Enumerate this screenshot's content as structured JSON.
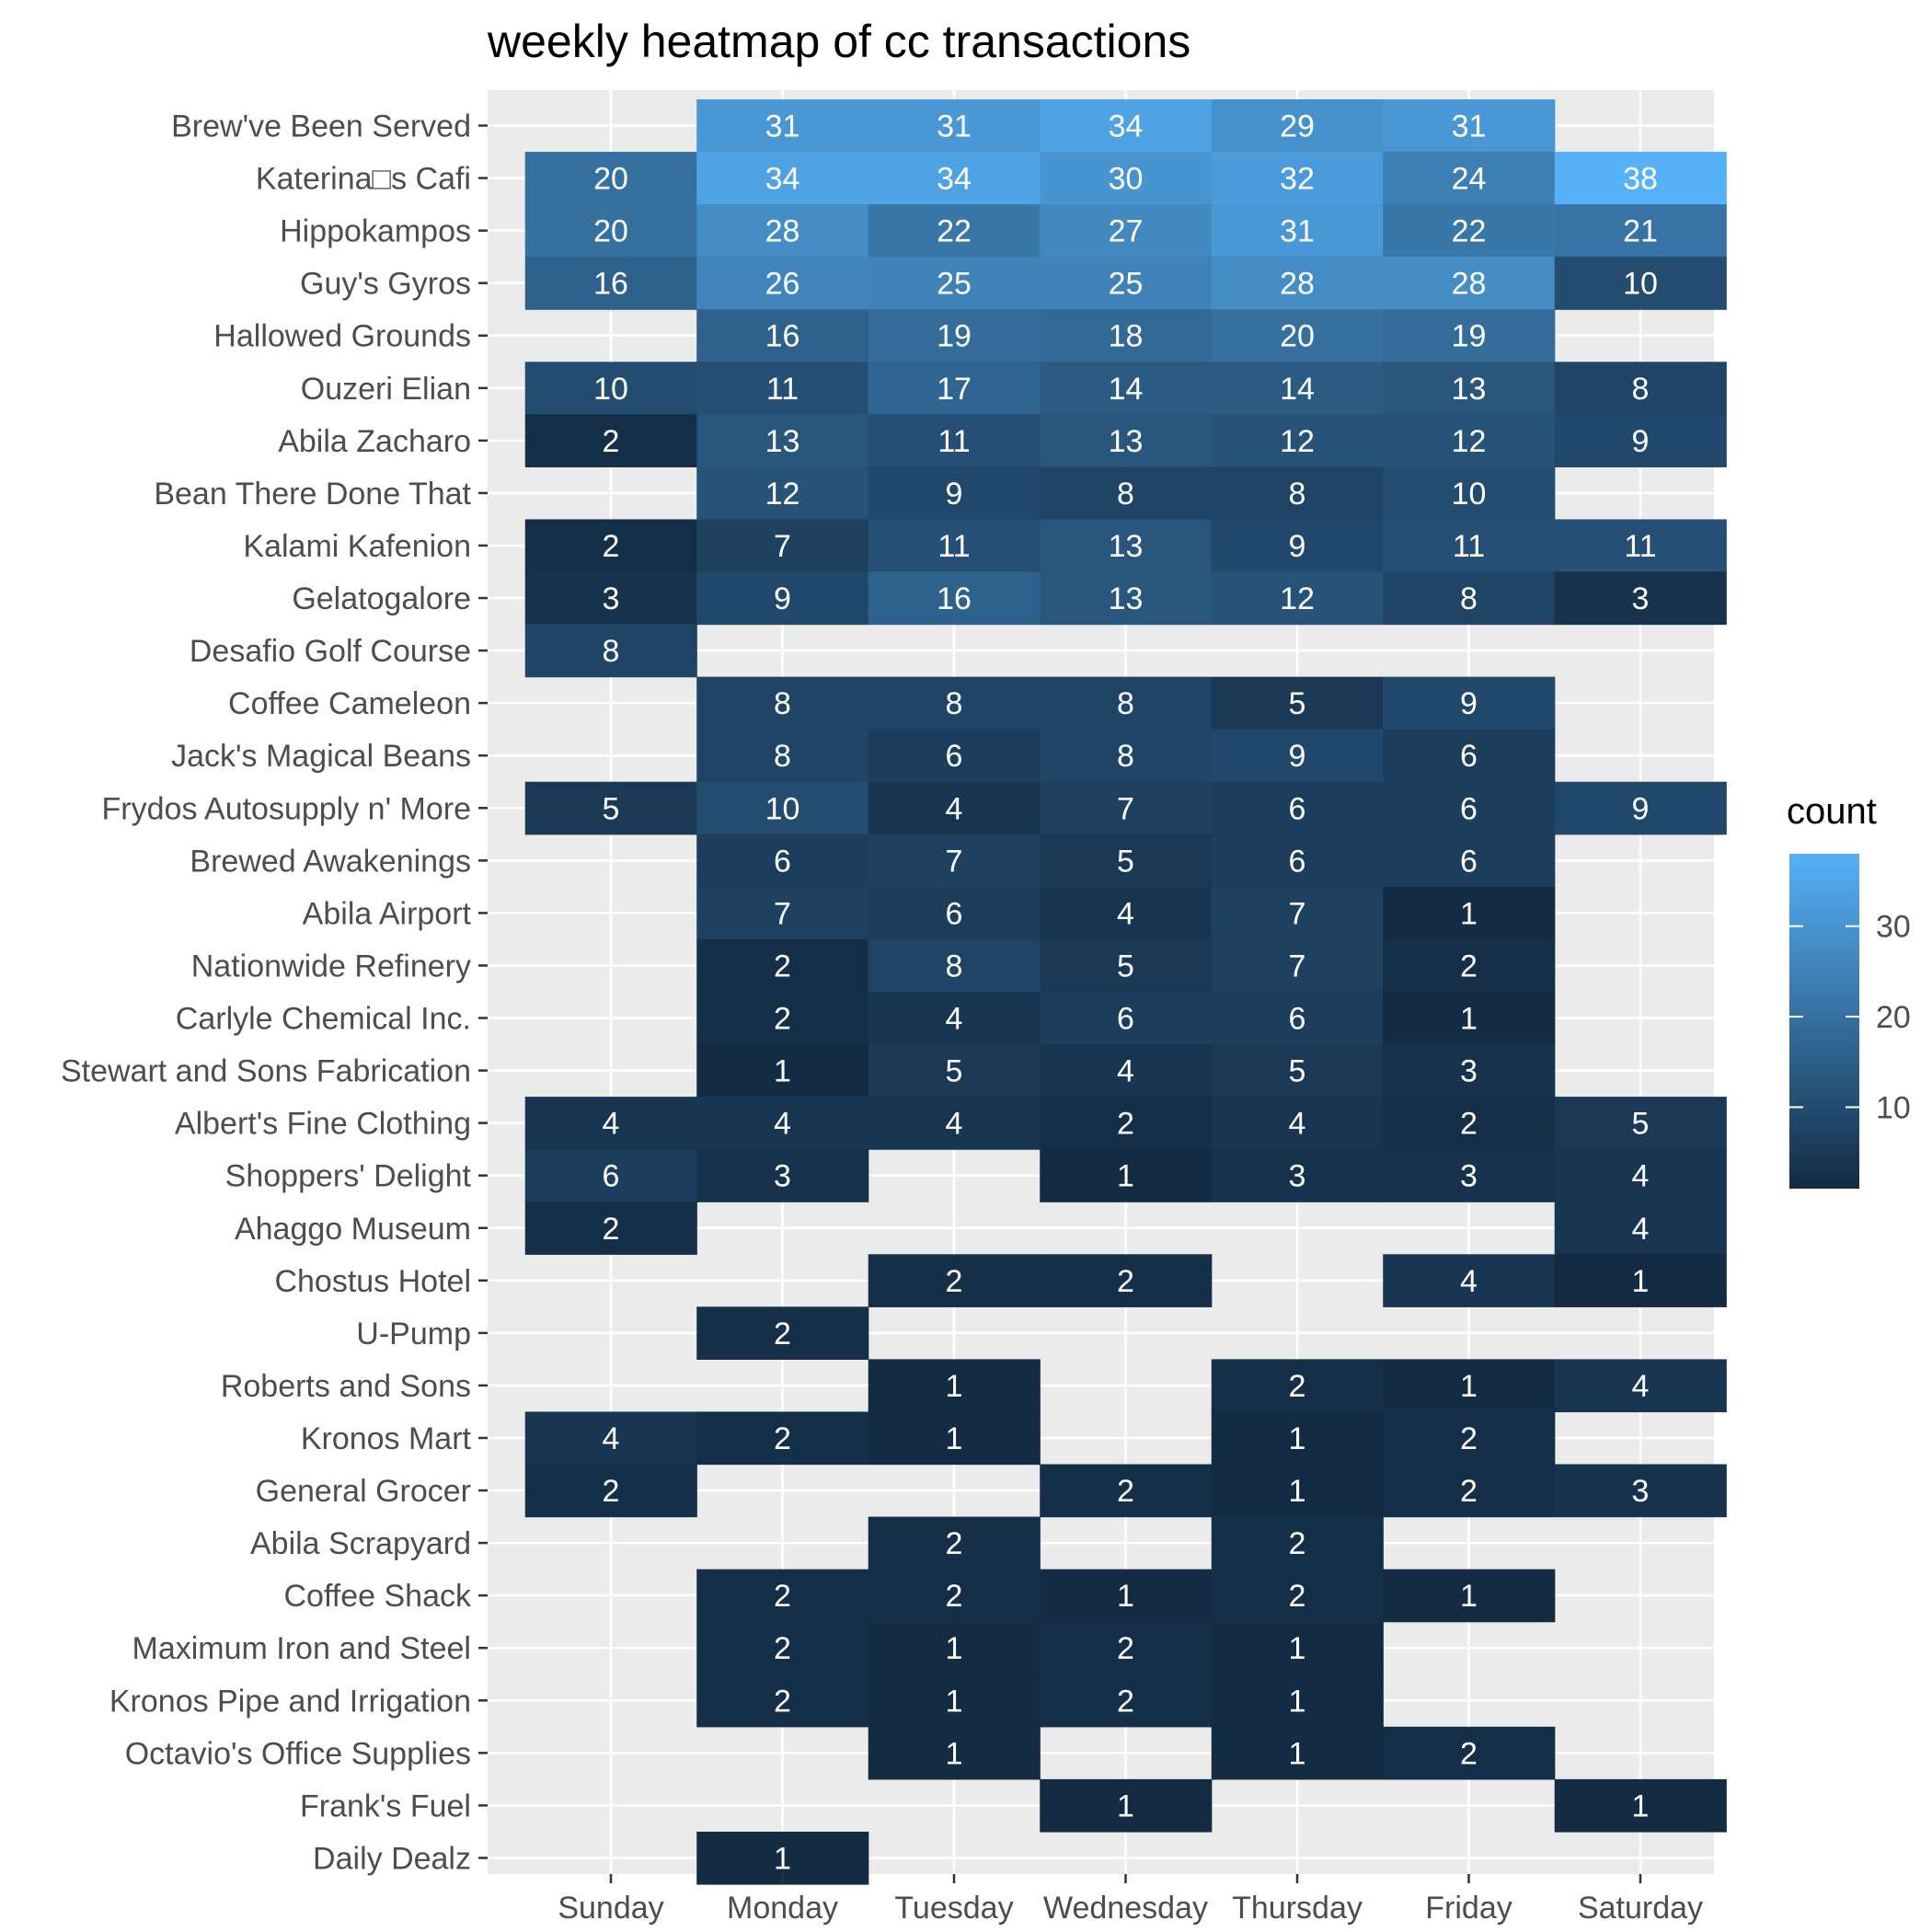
{
  "chart_data": {
    "type": "heatmap",
    "title": "weekly heatmap of cc transactions",
    "xlabel": "",
    "ylabel": "",
    "legend_title": "count",
    "legend_position": "right",
    "legend_ticks": [
      10,
      20,
      30
    ],
    "color_range": [
      1,
      38
    ],
    "color_low": "#132b43",
    "color_high": "#56b1f7",
    "panel_background": "#ebebeb",
    "grid": true,
    "days": [
      "Sunday",
      "Monday",
      "Tuesday",
      "Wednesday",
      "Thursday",
      "Friday",
      "Saturday"
    ],
    "locations": [
      "Brew've Been Served",
      "Katerina□s Cafi",
      "Hippokampos",
      "Guy's Gyros",
      "Hallowed Grounds",
      "Ouzeri Elian",
      "Abila Zacharo",
      "Bean There Done That",
      "Kalami Kafenion",
      "Gelatogalore",
      "Desafio Golf Course",
      "Coffee Cameleon",
      "Jack's Magical Beans",
      "Frydos Autosupply n' More",
      "Brewed Awakenings",
      "Abila Airport",
      "Nationwide Refinery",
      "Carlyle Chemical Inc.",
      "Stewart and Sons Fabrication",
      "Albert's Fine Clothing",
      "Shoppers' Delight",
      "Ahaggo Museum",
      "Chostus Hotel",
      "U-Pump",
      "Roberts and Sons",
      "Kronos Mart",
      "General Grocer",
      "Abila Scrapyard",
      "Coffee Shack",
      "Maximum Iron and Steel",
      "Kronos Pipe and Irrigation",
      "Octavio's Office Supplies",
      "Frank's Fuel",
      "Daily Dealz"
    ],
    "values": [
      [
        null,
        31,
        31,
        34,
        29,
        31,
        null
      ],
      [
        20,
        34,
        34,
        30,
        32,
        24,
        38
      ],
      [
        20,
        28,
        22,
        27,
        31,
        22,
        21
      ],
      [
        16,
        26,
        25,
        25,
        28,
        28,
        10
      ],
      [
        null,
        16,
        19,
        18,
        20,
        19,
        null
      ],
      [
        10,
        11,
        17,
        14,
        14,
        13,
        8
      ],
      [
        2,
        13,
        11,
        13,
        12,
        12,
        9
      ],
      [
        null,
        12,
        9,
        8,
        8,
        10,
        null
      ],
      [
        2,
        7,
        11,
        13,
        9,
        11,
        11
      ],
      [
        3,
        9,
        16,
        13,
        12,
        8,
        3
      ],
      [
        8,
        null,
        null,
        null,
        null,
        null,
        null
      ],
      [
        null,
        8,
        8,
        8,
        5,
        9,
        null
      ],
      [
        null,
        8,
        6,
        8,
        9,
        6,
        null
      ],
      [
        5,
        10,
        4,
        7,
        6,
        6,
        9
      ],
      [
        null,
        6,
        7,
        5,
        6,
        6,
        null
      ],
      [
        null,
        7,
        6,
        4,
        7,
        1,
        null
      ],
      [
        null,
        2,
        8,
        5,
        7,
        2,
        null
      ],
      [
        null,
        2,
        4,
        6,
        6,
        1,
        null
      ],
      [
        null,
        1,
        5,
        4,
        5,
        3,
        null
      ],
      [
        4,
        4,
        4,
        2,
        4,
        2,
        5
      ],
      [
        6,
        3,
        null,
        1,
        3,
        3,
        4
      ],
      [
        2,
        null,
        null,
        null,
        null,
        null,
        4
      ],
      [
        null,
        null,
        2,
        2,
        null,
        4,
        1
      ],
      [
        null,
        2,
        null,
        null,
        null,
        null,
        null
      ],
      [
        null,
        null,
        1,
        null,
        2,
        1,
        4
      ],
      [
        4,
        2,
        1,
        null,
        1,
        2,
        null
      ],
      [
        2,
        null,
        null,
        2,
        1,
        2,
        3
      ],
      [
        null,
        null,
        2,
        null,
        2,
        null,
        null
      ],
      [
        null,
        2,
        2,
        1,
        2,
        1,
        null
      ],
      [
        null,
        2,
        1,
        2,
        1,
        null,
        null
      ],
      [
        null,
        2,
        1,
        2,
        1,
        null,
        null
      ],
      [
        null,
        null,
        1,
        null,
        1,
        2,
        null
      ],
      [
        null,
        null,
        null,
        1,
        null,
        null,
        1
      ],
      [
        null,
        1,
        null,
        null,
        null,
        null,
        null
      ]
    ]
  }
}
